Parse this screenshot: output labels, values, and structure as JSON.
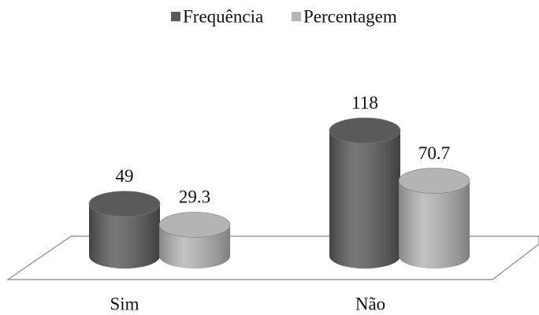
{
  "chart_data": {
    "type": "bar",
    "categories": [
      "Sim",
      "Não"
    ],
    "series": [
      {
        "name": "Frequência",
        "color": "#5a5a5a",
        "values": [
          49,
          118
        ]
      },
      {
        "name": "Percentagem",
        "color": "#b4b4b4",
        "values": [
          29.3,
          70.7
        ]
      }
    ],
    "legend": "top"
  }
}
